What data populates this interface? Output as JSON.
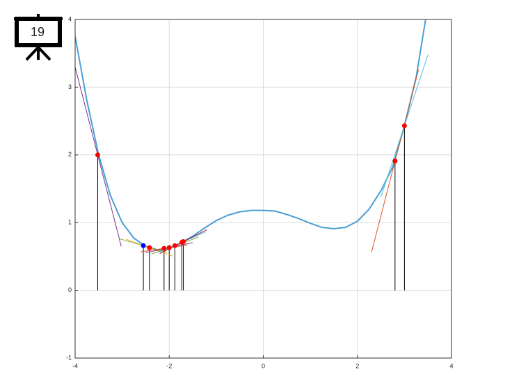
{
  "badge": "19",
  "chart_data": {
    "type": "line",
    "xlim": [
      -4,
      4
    ],
    "ylim": [
      -1,
      4
    ],
    "xticks": [
      -4,
      -2,
      0,
      2,
      4
    ],
    "yticks": [
      -1,
      0,
      1,
      2,
      3,
      4
    ],
    "grid": true,
    "series": [
      {
        "color": "#4a9fd4",
        "x": [
          -4,
          -3.75,
          -3.5,
          -3.25,
          -3,
          -2.75,
          -2.5,
          -2.25,
          -2,
          -1.75,
          -1.5,
          -1.25,
          -1,
          -0.75,
          -0.5,
          -0.25,
          0,
          0.25,
          0.5,
          0.75,
          1,
          1.25,
          1.5,
          1.75,
          2,
          2.25,
          2.5,
          2.75,
          3,
          3.25,
          3.45
        ],
        "values": [
          3.75,
          2.8,
          2.0,
          1.4,
          1.0,
          0.77,
          0.65,
          0.6,
          0.62,
          0.7,
          0.8,
          0.92,
          1.03,
          1.11,
          1.16,
          1.18,
          1.18,
          1.17,
          1.12,
          1.06,
          0.99,
          0.93,
          0.91,
          0.93,
          1.02,
          1.2,
          1.47,
          1.82,
          2.43,
          3.15,
          4.0
        ]
      }
    ],
    "iterates": {
      "x": [
        -3.52,
        -2.55,
        -2.42,
        -2.11,
        -2.0,
        -1.88,
        -1.73,
        -1.7,
        2.8,
        3.0
      ],
      "values": [
        2.0,
        0.66,
        0.63,
        0.62,
        0.63,
        0.66,
        0.71,
        0.72,
        1.91,
        2.43
      ],
      "slopes": [
        -2.7,
        -0.2,
        -0.25,
        0.1,
        0.15,
        0.25,
        0.3,
        0.35,
        2.7,
        2.1
      ],
      "colors": [
        "#ff0000",
        "#0000ff",
        "#ff0000",
        "#ff0000",
        "#ff0000",
        "#ff0000",
        "#ff0000",
        "#ff0000",
        "#ff0000",
        "#ff0000"
      ],
      "tangent_colors": [
        "#7e2f8e",
        "#77ac30",
        "#edb120",
        "#d95319",
        "#7e2f8e",
        "#77ac30",
        "#4dbeee",
        "#a2142f",
        "#d95319",
        "#4dbeee"
      ],
      "stem_color": "#000000"
    }
  }
}
